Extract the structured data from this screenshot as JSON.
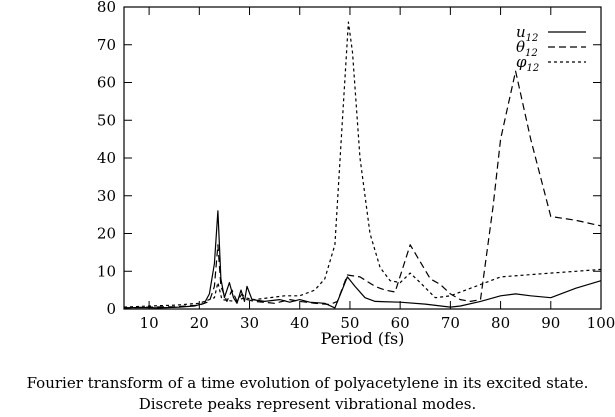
{
  "chart_data": {
    "type": "line",
    "title": "",
    "xlabel": "Period (fs)",
    "ylabel": "",
    "xlim": [
      5,
      100
    ],
    "ylim": [
      0,
      80
    ],
    "xticks": [
      10,
      20,
      30,
      40,
      50,
      60,
      70,
      80,
      90,
      100
    ],
    "yticks": [
      0,
      10,
      20,
      30,
      40,
      50,
      60,
      70,
      80
    ],
    "x_tick_labels": [
      "10",
      "20",
      "30",
      "40",
      "50",
      "60",
      "70",
      "80",
      "90",
      "100"
    ],
    "y_tick_labels": [
      "0",
      "10",
      "20",
      "30",
      "40",
      "50",
      "60",
      "70",
      "80"
    ],
    "grid": false,
    "legend_position": "top-right",
    "series": [
      {
        "name": "u",
        "name_sub": "12",
        "style": "solid",
        "points": [
          [
            5,
            0.3
          ],
          [
            8,
            0.4
          ],
          [
            12,
            0.3
          ],
          [
            16,
            0.5
          ],
          [
            19,
            0.8
          ],
          [
            21,
            1.5
          ],
          [
            22,
            4
          ],
          [
            23,
            12
          ],
          [
            23.7,
            26
          ],
          [
            24.3,
            8
          ],
          [
            25,
            3
          ],
          [
            26,
            7
          ],
          [
            26.8,
            3
          ],
          [
            27.5,
            1.5
          ],
          [
            28.3,
            5
          ],
          [
            29,
            2
          ],
          [
            29.5,
            6
          ],
          [
            30.5,
            2.5
          ],
          [
            33,
            2
          ],
          [
            36,
            2.5
          ],
          [
            38,
            1.8
          ],
          [
            40,
            2.5
          ],
          [
            42,
            1.8
          ],
          [
            45,
            1.5
          ],
          [
            47,
            0.3
          ],
          [
            49.5,
            8.5
          ],
          [
            51,
            6
          ],
          [
            53,
            3
          ],
          [
            55,
            2
          ],
          [
            60,
            1.8
          ],
          [
            65,
            1.3
          ],
          [
            70,
            0.5
          ],
          [
            72,
            0.8
          ],
          [
            76,
            2
          ],
          [
            80,
            3.5
          ],
          [
            83,
            4
          ],
          [
            86,
            3.5
          ],
          [
            90,
            3
          ],
          [
            95,
            5.5
          ],
          [
            100,
            7.5
          ]
        ]
      },
      {
        "name": "θ",
        "name_sub": "12",
        "style": "dashed",
        "points": [
          [
            5,
            0.3
          ],
          [
            10,
            0.5
          ],
          [
            15,
            0.6
          ],
          [
            20,
            1
          ],
          [
            22,
            2
          ],
          [
            23,
            6
          ],
          [
            23.7,
            17
          ],
          [
            24.3,
            6
          ],
          [
            25.5,
            2
          ],
          [
            26.5,
            5
          ],
          [
            27.5,
            2
          ],
          [
            28.5,
            4
          ],
          [
            29.5,
            2.5
          ],
          [
            31,
            2
          ],
          [
            35,
            1.5
          ],
          [
            38,
            2.5
          ],
          [
            40,
            2
          ],
          [
            43,
            1.5
          ],
          [
            46,
            1.2
          ],
          [
            47.5,
            2
          ],
          [
            49.5,
            9
          ],
          [
            52,
            8.5
          ],
          [
            55,
            6
          ],
          [
            57,
            5
          ],
          [
            59,
            4.5
          ],
          [
            62,
            17
          ],
          [
            64,
            12.5
          ],
          [
            66,
            8
          ],
          [
            68,
            6.5
          ],
          [
            70,
            4
          ],
          [
            72,
            2.5
          ],
          [
            74,
            2
          ],
          [
            76,
            2.5
          ],
          [
            78.5,
            27
          ],
          [
            80,
            45
          ],
          [
            83,
            63
          ],
          [
            86,
            45
          ],
          [
            90,
            24.5
          ],
          [
            95,
            23.5
          ],
          [
            100,
            22
          ]
        ]
      },
      {
        "name": "φ",
        "name_sub": "12",
        "style": "dotted",
        "points": [
          [
            5,
            0.5
          ],
          [
            10,
            0.8
          ],
          [
            15,
            1
          ],
          [
            20,
            1.5
          ],
          [
            23,
            3
          ],
          [
            23.7,
            7
          ],
          [
            24.5,
            2.5
          ],
          [
            27,
            2
          ],
          [
            29,
            3
          ],
          [
            31,
            2.5
          ],
          [
            34,
            3
          ],
          [
            37,
            3.5
          ],
          [
            40,
            3.5
          ],
          [
            43,
            5
          ],
          [
            45,
            8
          ],
          [
            47,
            17
          ],
          [
            48.5,
            50
          ],
          [
            49.7,
            76
          ],
          [
            50.5,
            68
          ],
          [
            52,
            40
          ],
          [
            54,
            20
          ],
          [
            56,
            11
          ],
          [
            58,
            7.5
          ],
          [
            60,
            7
          ],
          [
            62,
            9.5
          ],
          [
            64,
            7
          ],
          [
            67,
            3
          ],
          [
            70,
            3.5
          ],
          [
            75,
            6
          ],
          [
            80,
            8.5
          ],
          [
            85,
            9
          ],
          [
            90,
            9.5
          ],
          [
            95,
            10
          ],
          [
            100,
            10.5
          ]
        ]
      }
    ]
  },
  "caption": {
    "line1": "Fourier transform of a time evolution of polyacetylene in its excited state.",
    "line2": "Discrete peaks represent vibrational modes."
  }
}
